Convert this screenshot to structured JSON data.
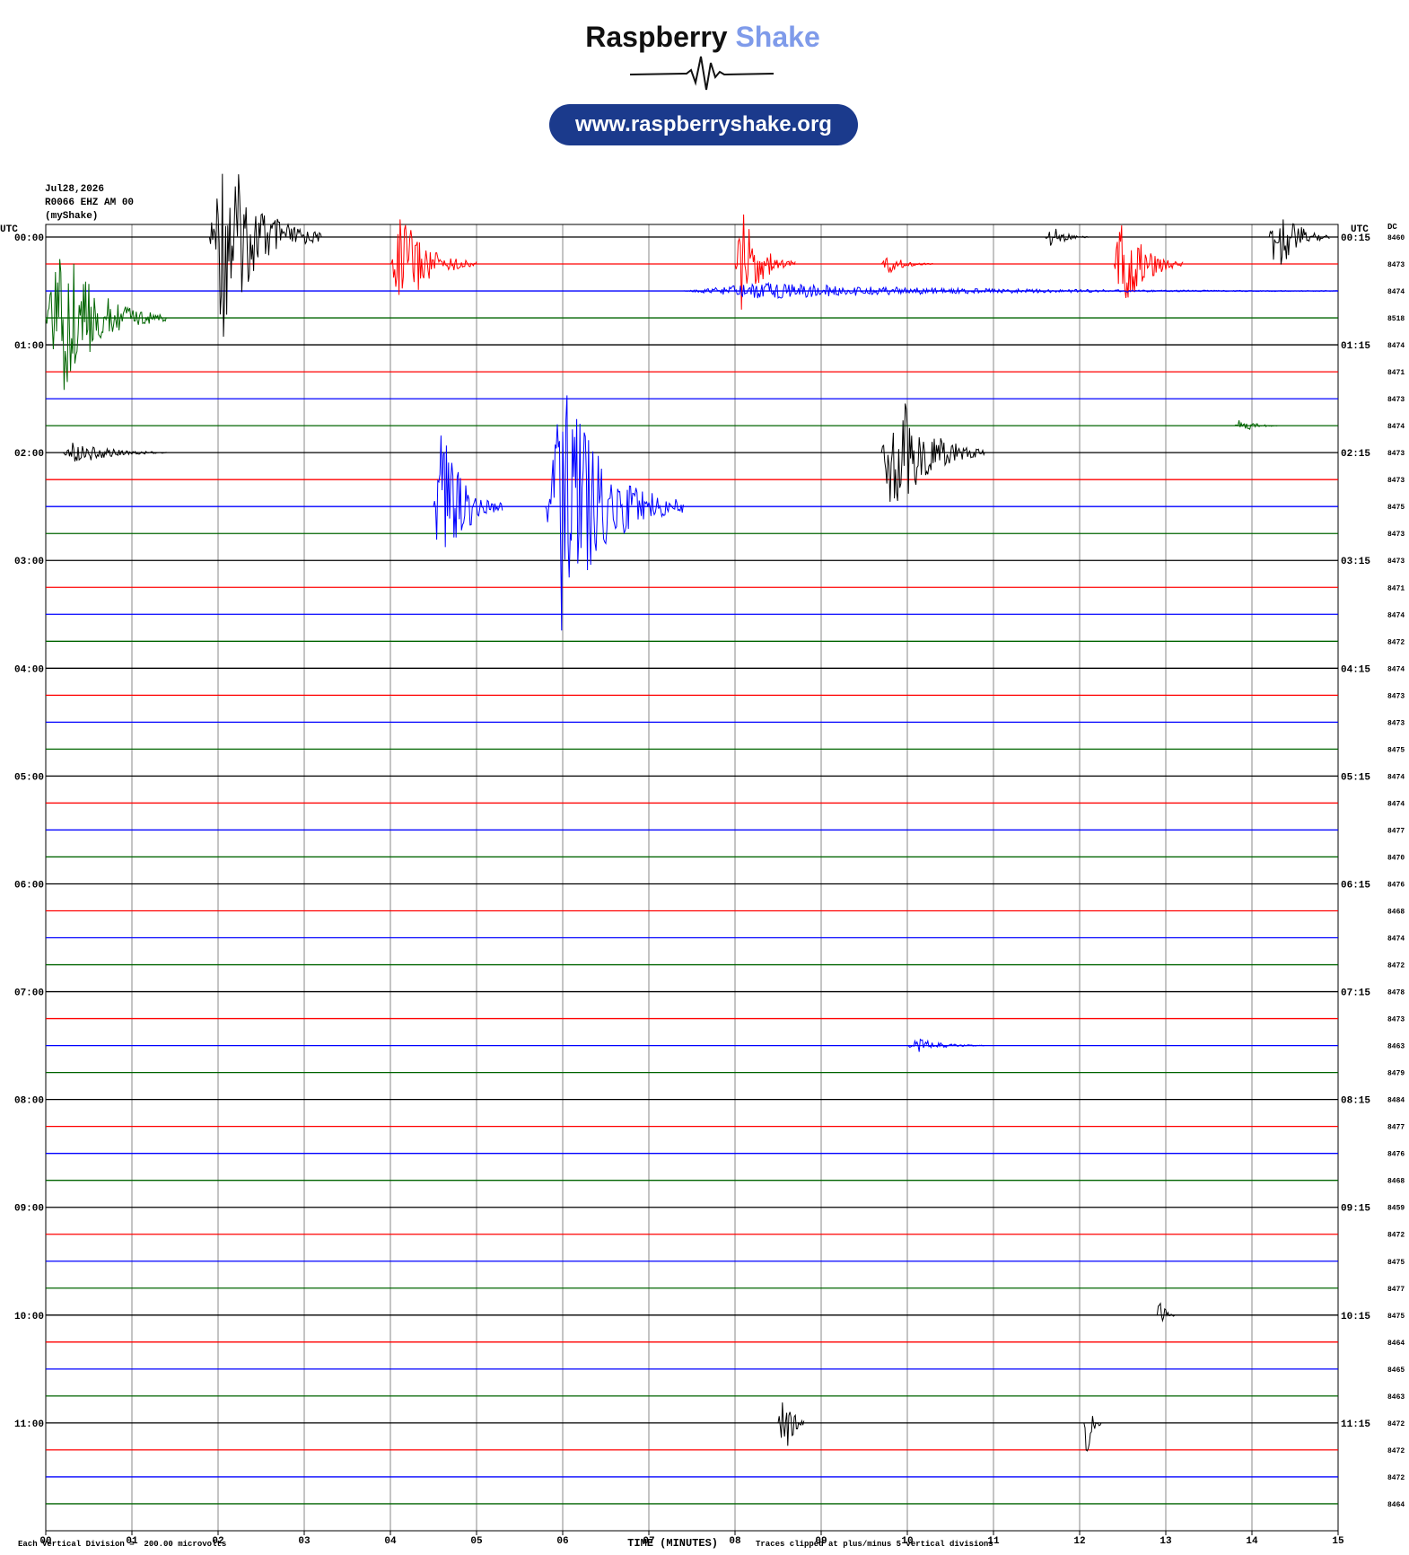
{
  "header": {
    "brand": "Raspberry",
    "brand_accent": "Shake",
    "url": "www.raspberryshake.org"
  },
  "chart_data": {
    "type": "helicorder",
    "date": "Jul28,2026",
    "station": "R0066 EHZ AM 00",
    "source": "(myShake)",
    "left_axis_title": "UTC",
    "right_axis_title": "UTC",
    "dc_title": "DC",
    "row_labels_left": [
      "00:00",
      "01:00",
      "02:00",
      "03:00",
      "04:00",
      "05:00",
      "06:00",
      "07:00",
      "08:00",
      "09:00",
      "10:00",
      "11:00"
    ],
    "row_labels_right": [
      "00:15",
      "01:15",
      "02:15",
      "03:15",
      "04:15",
      "05:15",
      "06:15",
      "07:15",
      "08:15",
      "09:15",
      "10:15",
      "11:15"
    ],
    "dc_values": [
      8460,
      8473,
      8474,
      8518,
      8474,
      8471,
      8473,
      8474,
      8473,
      8473,
      8475,
      8473,
      8473,
      8471,
      8474,
      8472,
      8474,
      8473,
      8473,
      8475,
      8474,
      8474,
      8477,
      8470,
      8476,
      8468,
      8474,
      8472,
      8478,
      8473,
      8463,
      8479,
      8484,
      8477,
      8476,
      8468,
      8459,
      8472,
      8475,
      8477,
      8475,
      8464,
      8465,
      8463,
      8472,
      8472,
      8472,
      8464
    ],
    "colors": [
      "#000000",
      "#ff0000",
      "#0000ff",
      "#006400"
    ],
    "xlim": [
      0,
      15
    ],
    "xticks": [
      {
        "value": 0,
        "label": "00"
      },
      {
        "value": 1,
        "label": "01"
      },
      {
        "value": 2,
        "label": "02"
      },
      {
        "value": 3,
        "label": "03"
      },
      {
        "value": 4,
        "label": "04"
      },
      {
        "value": 5,
        "label": "05"
      },
      {
        "value": 6,
        "label": "06"
      },
      {
        "value": 7,
        "label": "07"
      },
      {
        "value": 8,
        "label": "08"
      },
      {
        "value": 9,
        "label": "09"
      },
      {
        "value": 10,
        "label": "10"
      },
      {
        "value": 11,
        "label": "11"
      },
      {
        "value": 12,
        "label": "12"
      },
      {
        "value": 13,
        "label": "13"
      },
      {
        "value": 14,
        "label": "14"
      },
      {
        "value": 15,
        "label": "15"
      }
    ],
    "x_label": "TIME (MINUTES)",
    "scale_note": "Each Vertical Division =  200.00 microvolts",
    "clip_note": "Traces clipped at plus/minus 5 vertical divisions",
    "events": [
      {
        "row": 0,
        "start": 1.9,
        "end": 3.2,
        "amplitude": 3.8
      },
      {
        "row": 0,
        "start": 11.6,
        "end": 12.1,
        "amplitude": 0.5
      },
      {
        "row": 0,
        "start": 14.2,
        "end": 14.9,
        "amplitude": 1.6
      },
      {
        "row": 1,
        "start": 4.0,
        "end": 5.0,
        "amplitude": 2.0
      },
      {
        "row": 1,
        "start": 8.0,
        "end": 8.7,
        "amplitude": 2.0
      },
      {
        "row": 1,
        "start": 9.7,
        "end": 10.3,
        "amplitude": 0.4
      },
      {
        "row": 1,
        "start": 12.4,
        "end": 13.2,
        "amplitude": 2.2
      },
      {
        "row": 2,
        "start": 7.4,
        "end": 15,
        "amplitude": 0.3
      },
      {
        "row": 3,
        "start": 0,
        "end": 1.4,
        "amplitude": 3.0
      },
      {
        "row": 7,
        "start": 13.8,
        "end": 14.3,
        "amplitude": 0.3
      },
      {
        "row": 8,
        "start": 0.2,
        "end": 1.4,
        "amplitude": 0.5
      },
      {
        "row": 8,
        "start": 9.7,
        "end": 10.9,
        "amplitude": 2.7
      },
      {
        "row": 10,
        "start": 4.5,
        "end": 5.3,
        "amplitude": 3.2
      },
      {
        "row": 10,
        "start": 5.8,
        "end": 7.4,
        "amplitude": 4.9
      },
      {
        "row": 30,
        "start": 10.0,
        "end": 10.9,
        "amplitude": 0.3
      },
      {
        "row": 40,
        "start": 12.9,
        "end": 13.1,
        "amplitude": 0.8
      },
      {
        "row": 44,
        "start": 8.5,
        "end": 8.8,
        "amplitude": 2.5
      },
      {
        "row": 44,
        "start": 12.05,
        "end": 12.25,
        "amplitude": 1.5
      }
    ]
  }
}
